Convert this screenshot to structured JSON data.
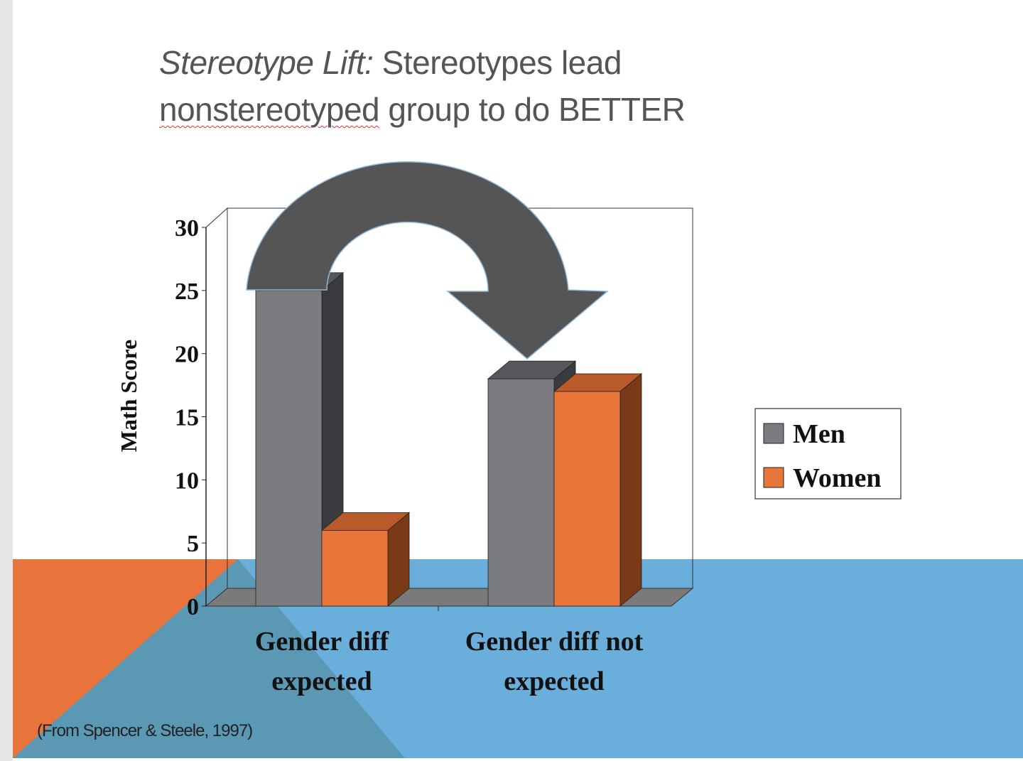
{
  "slide": {
    "title_italic": "Stereotype Lift:",
    "title_rest_line1": " Stereotypes lead",
    "title_line2_misspelled": "nonstereotyped",
    "title_line2_rest": " group to do BETTER",
    "source": "(From Spencer & Steele, 1997)",
    "colors": {
      "background_band_blue": "#6AAFDC",
      "background_band_orange": "#E8743B",
      "overlap": "#5B98B3",
      "arrow": "#555555"
    }
  },
  "chart_data": {
    "type": "bar",
    "style": "3d-clustered",
    "title": "",
    "xlabel": "",
    "ylabel": "Math Score",
    "ylim": [
      0,
      30
    ],
    "yticks": [
      0,
      5,
      10,
      15,
      20,
      25,
      30
    ],
    "categories": [
      [
        "Gender diff",
        "expected"
      ],
      [
        "Gender diff not",
        "expected"
      ]
    ],
    "series": [
      {
        "name": "Men",
        "values": [
          25,
          18
        ],
        "color": "#7B7C80"
      },
      {
        "name": "Women",
        "values": [
          6,
          17
        ],
        "color": "#E8753A"
      }
    ],
    "legend": "right",
    "grid": false,
    "annotation": "curved arrow from Men bar (diff expected) to Men bar (diff not expected)"
  }
}
